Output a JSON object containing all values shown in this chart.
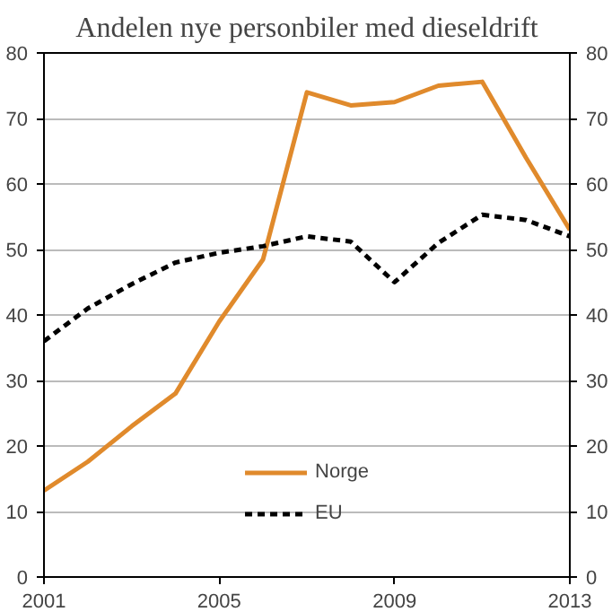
{
  "chart_data": {
    "type": "line",
    "title": "Andelen nye personbiler med dieseldrift",
    "x": [
      2001,
      2002,
      2003,
      2004,
      2005,
      2006,
      2007,
      2008,
      2009,
      2010,
      2011,
      2012,
      2013
    ],
    "series": [
      {
        "name": "Norge",
        "color": "#e08a2c",
        "line_style": "solid",
        "values": [
          13.2,
          17.6,
          23,
          28,
          39,
          48.5,
          74,
          72,
          72.5,
          75,
          75.6,
          64,
          53
        ]
      },
      {
        "name": "EU",
        "color": "#000000",
        "line_style": "dashed",
        "values": [
          36,
          41,
          44.7,
          48,
          49.5,
          50.5,
          52,
          51.2,
          45,
          51,
          55.3,
          54.5,
          52
        ]
      }
    ],
    "xlim": [
      2001,
      2013
    ],
    "xticks": [
      2001,
      2005,
      2009,
      2013
    ],
    "ylim": [
      0,
      80
    ],
    "yticks": [
      0,
      10,
      20,
      30,
      40,
      50,
      60,
      70,
      80
    ],
    "y2lim": [
      0,
      80
    ],
    "y2ticks": [
      0,
      10,
      20,
      30,
      40,
      50,
      60,
      70,
      80
    ],
    "grid": "y",
    "legend": "bottom",
    "marker": "none"
  }
}
